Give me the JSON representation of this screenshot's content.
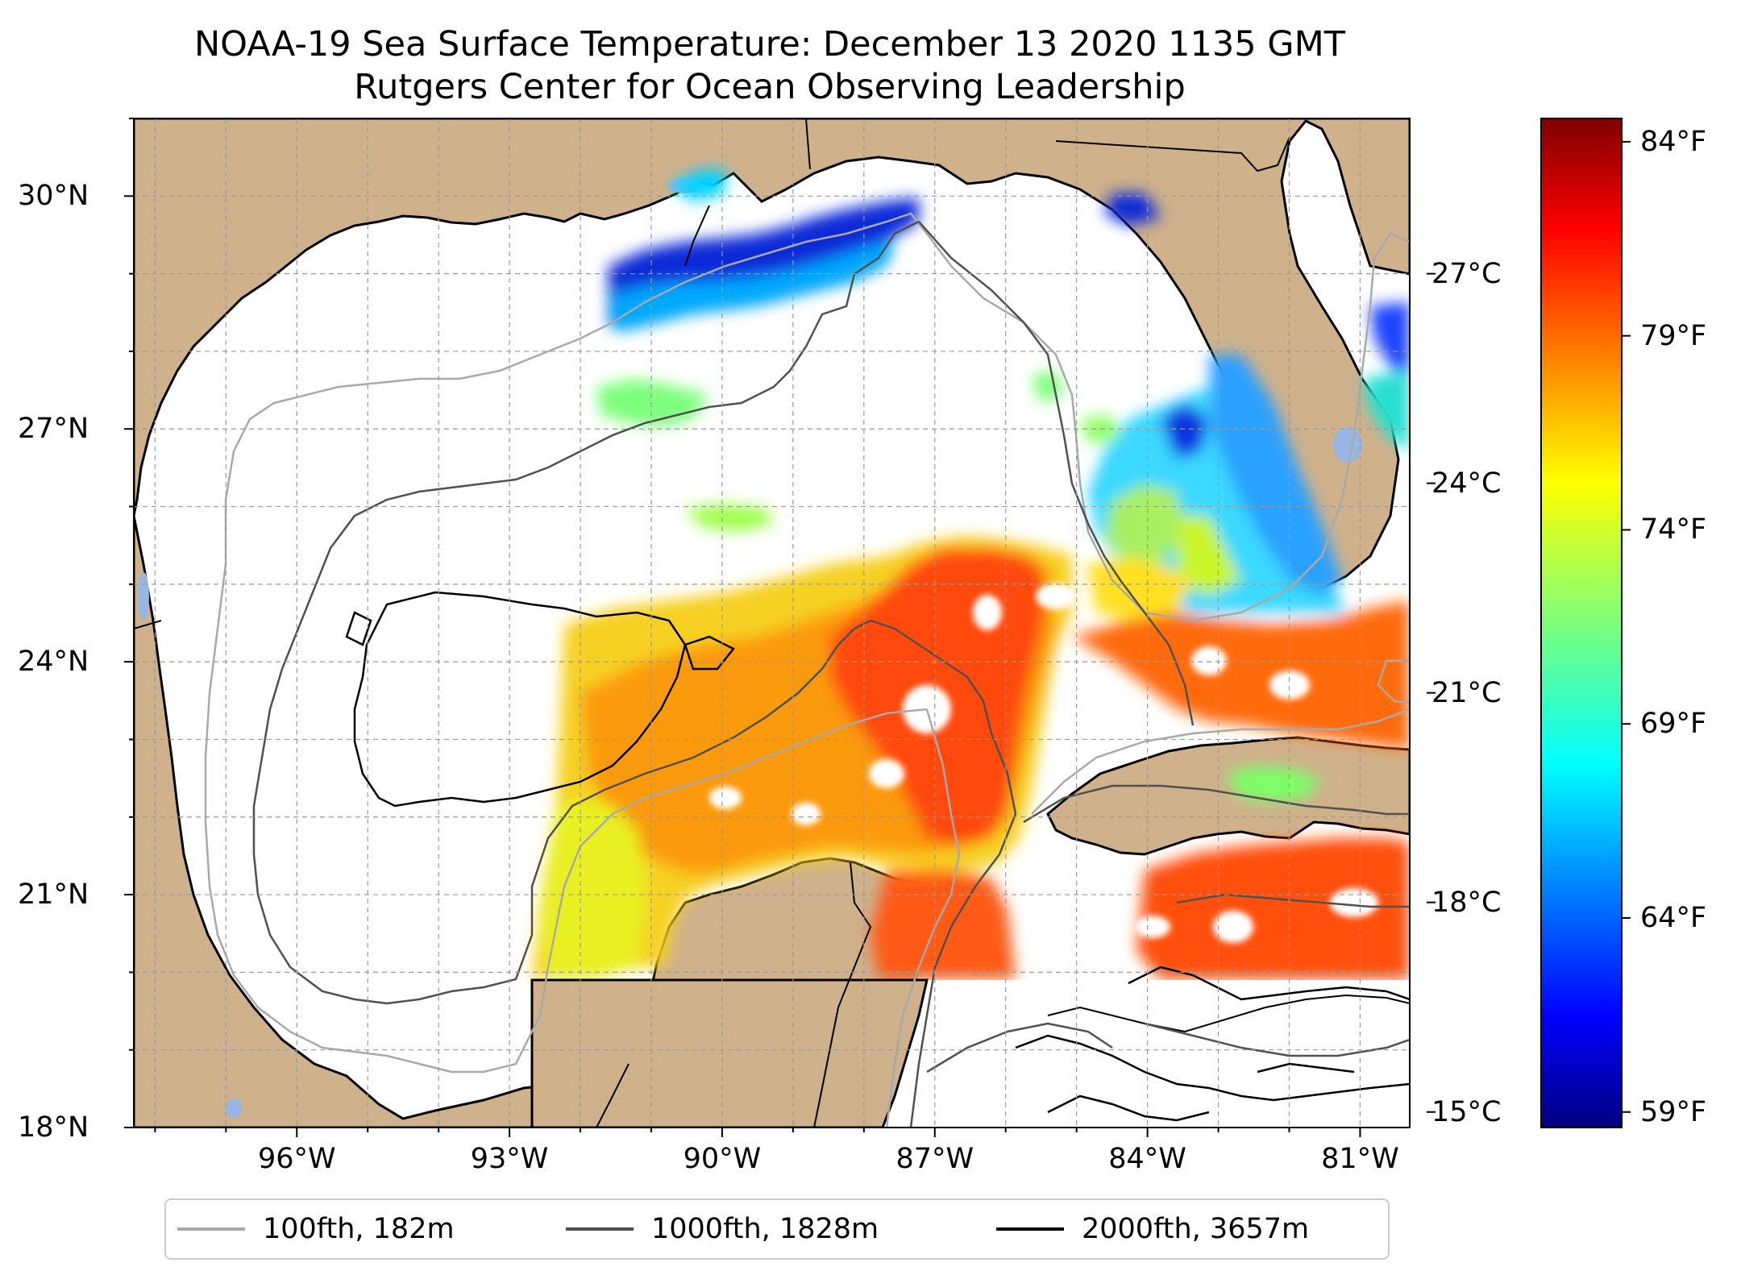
{
  "title_line1": "NOAA-19 Sea Surface Temperature: December 13 2020 1135 GMT",
  "title_line2": "Rutgers Center for Ocean Observing Leadership",
  "map": {
    "lon_range": [
      -98.3,
      -80.3
    ],
    "lat_range": [
      18.0,
      31.0
    ],
    "lat_labels": [
      "30°N",
      "27°N",
      "24°N",
      "21°N",
      "18°N"
    ],
    "lat_values": [
      30,
      27,
      24,
      21,
      18
    ],
    "lon_labels": [
      "96°W",
      "93°W",
      "90°W",
      "87°W",
      "84°W",
      "81°W"
    ],
    "lon_values": [
      -96,
      -93,
      -90,
      -87,
      -84,
      -81
    ],
    "gridlines": "dashed",
    "land_color": "#cfb18b",
    "water_color": "#ffffff",
    "lake_color": "#97b6e1"
  },
  "colorbar": {
    "colormap": "jet",
    "celsius_labels": [
      "27°C",
      "24°C",
      "21°C",
      "18°C",
      "15°C"
    ],
    "celsius_values": [
      27,
      24,
      21,
      18,
      15
    ],
    "fahrenheit_labels": [
      "84°F",
      "79°F",
      "74°F",
      "69°F",
      "64°F",
      "59°F"
    ],
    "fahrenheit_values": [
      84,
      79,
      74,
      69,
      64,
      59
    ],
    "f_range": [
      58.6,
      84.6
    ]
  },
  "legend": {
    "items": [
      {
        "label": "100fth, 182m",
        "color": "#a9a9a9"
      },
      {
        "label": "1000fth, 1828m",
        "color": "#505050"
      },
      {
        "label": "2000fth, 3657m",
        "color": "#000000"
      }
    ]
  }
}
